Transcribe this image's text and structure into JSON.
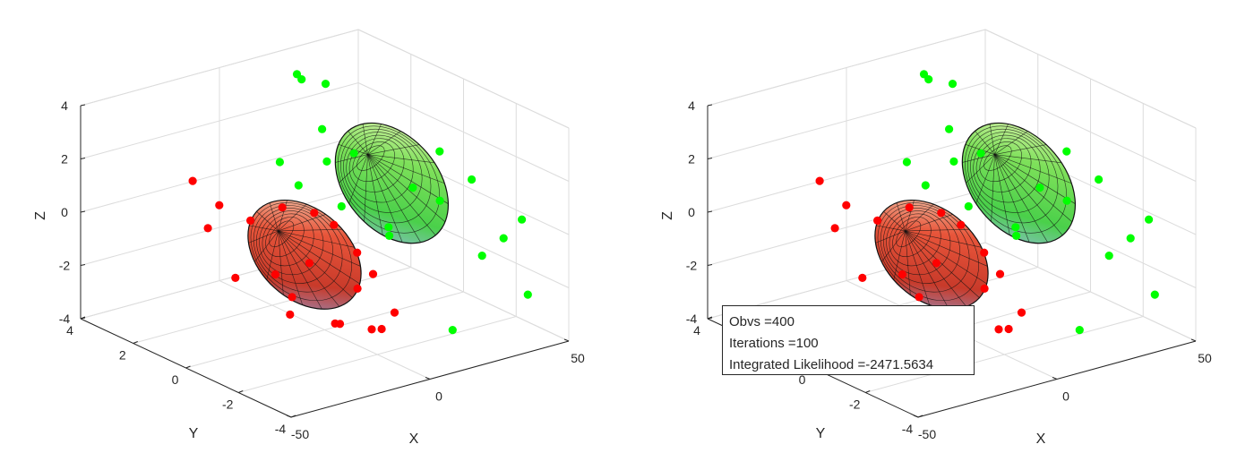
{
  "chart_data": [
    {
      "type": "scatter",
      "title": "",
      "xlabel": "X",
      "ylabel": "Y",
      "zlabel": "Z",
      "xticks": [
        "-50",
        "0",
        "50"
      ],
      "yticks": [
        "-4",
        "-2",
        "0",
        "2",
        "4"
      ],
      "zticks": [
        "-4",
        "-2",
        "0",
        "2",
        "4"
      ],
      "xlim": [
        -50,
        50
      ],
      "ylim": [
        -4,
        4
      ],
      "zlim": [
        -4,
        4
      ],
      "grid": true,
      "colors": {
        "cluster1": "#ff0000",
        "cluster2": "#00ff00"
      },
      "surface": "ellipsoid",
      "series": [
        {
          "color": "#ff0000",
          "points": [
            [
              -18,
              -1.5,
              1.6
            ],
            [
              -20,
              -0.5,
              1.4
            ],
            [
              -22,
              0.5,
              0.5
            ],
            [
              -25,
              1.8,
              -0.3
            ],
            [
              -12,
              -2.5,
              0.4
            ],
            [
              -15,
              -1,
              -0.6
            ],
            [
              -10,
              -2.3,
              -1.1
            ],
            [
              -8,
              -3.5,
              -1.5
            ],
            [
              -6,
              -2.8,
              -2.5
            ],
            [
              -14,
              0.4,
              -1.7
            ],
            [
              -17,
              1.6,
              -2.3
            ],
            [
              -4,
              -1,
              -3.2
            ],
            [
              -2,
              -2,
              -3.0
            ],
            [
              -1,
              -0.5,
              -3.5
            ],
            [
              -19,
              2,
              0.3
            ],
            [
              -21,
              2.8,
              0.9
            ],
            [
              -9,
              -1.3,
              0.8
            ],
            [
              -11,
              -3,
              -0.2
            ],
            [
              -7,
              0.5,
              -2.8
            ],
            [
              -3,
              1,
              -3.8
            ]
          ]
        },
        {
          "color": "#00ff00",
          "points": [
            [
              22,
              3.2,
              3.3
            ],
            [
              24,
              2.5,
              3.4
            ],
            [
              26,
              3.8,
              3.1
            ],
            [
              18,
              2,
              2.1
            ],
            [
              20,
              1,
              1.6
            ],
            [
              15,
              1.5,
              1.2
            ],
            [
              30,
              -1.2,
              2.4
            ],
            [
              34,
              -2,
              1.6
            ],
            [
              32,
              -1,
              0.4
            ],
            [
              36,
              -3,
              -0.2
            ],
            [
              33,
              -2.5,
              -1
            ],
            [
              28,
              0.5,
              -1.5
            ],
            [
              25,
              2,
              -1
            ],
            [
              40,
              -3.5,
              -2.2
            ],
            [
              29,
              -1.8,
              -4
            ],
            [
              19,
              3,
              -0.5
            ],
            [
              23,
              0,
              -0.8
            ],
            [
              27,
              -0.5,
              0.8
            ],
            [
              17,
              3.5,
              0.2
            ],
            [
              35,
              -3.8,
              0.9
            ]
          ]
        }
      ]
    },
    {
      "type": "scatter",
      "title": "",
      "xlabel": "X",
      "ylabel": "Y",
      "zlabel": "Z",
      "xticks": [
        "-50",
        "0",
        "50"
      ],
      "yticks": [
        "-4",
        "-2",
        "0",
        "2",
        "4"
      ],
      "zticks": [
        "-4",
        "-2",
        "0",
        "2",
        "4"
      ],
      "xlim": [
        -50,
        50
      ],
      "ylim": [
        -4,
        4
      ],
      "zlim": [
        -4,
        4
      ],
      "grid": true,
      "colors": {
        "cluster1": "#ff0000",
        "cluster2": "#00ff00"
      },
      "surface": "ellipsoid",
      "series": [
        {
          "color": "#ff0000",
          "points": [
            [
              -18,
              -1.5,
              1.6
            ],
            [
              -20,
              -0.5,
              1.4
            ],
            [
              -22,
              0.5,
              0.5
            ],
            [
              -25,
              1.8,
              -0.3
            ],
            [
              -12,
              -2.5,
              0.4
            ],
            [
              -15,
              -1,
              -0.6
            ],
            [
              -10,
              -2.3,
              -1.1
            ],
            [
              -8,
              -3.5,
              -1.5
            ],
            [
              -6,
              -2.8,
              -2.5
            ],
            [
              -14,
              0.4,
              -1.7
            ],
            [
              -17,
              1.6,
              -2.3
            ],
            [
              -4,
              -1,
              -3.2
            ],
            [
              -2,
              -2,
              -3.0
            ],
            [
              -1,
              -0.5,
              -3.5
            ],
            [
              -19,
              2,
              0.3
            ],
            [
              -21,
              2.8,
              0.9
            ],
            [
              -9,
              -1.3,
              0.8
            ],
            [
              -11,
              -3,
              -0.2
            ],
            [
              -7,
              0.5,
              -2.8
            ],
            [
              -3,
              1,
              -3.8
            ]
          ]
        },
        {
          "color": "#00ff00",
          "points": [
            [
              22,
              3.2,
              3.3
            ],
            [
              24,
              2.5,
              3.4
            ],
            [
              26,
              3.8,
              3.1
            ],
            [
              18,
              2,
              2.1
            ],
            [
              20,
              1,
              1.6
            ],
            [
              15,
              1.5,
              1.2
            ],
            [
              30,
              -1.2,
              2.4
            ],
            [
              34,
              -2,
              1.6
            ],
            [
              32,
              -1,
              0.4
            ],
            [
              36,
              -3,
              -0.2
            ],
            [
              33,
              -2.5,
              -1
            ],
            [
              28,
              0.5,
              -1.5
            ],
            [
              25,
              2,
              -1
            ],
            [
              40,
              -3.5,
              -2.2
            ],
            [
              29,
              -1.8,
              -4
            ],
            [
              19,
              3,
              -0.5
            ],
            [
              23,
              0,
              -0.8
            ],
            [
              27,
              -0.5,
              0.8
            ],
            [
              17,
              3.5,
              0.2
            ],
            [
              35,
              -3.8,
              0.9
            ]
          ]
        }
      ]
    }
  ],
  "info_box": {
    "obvs": "Obvs =400",
    "iterations": "Iterations =100",
    "likelihood": "Integrated Likelihood =-2471.5634"
  }
}
